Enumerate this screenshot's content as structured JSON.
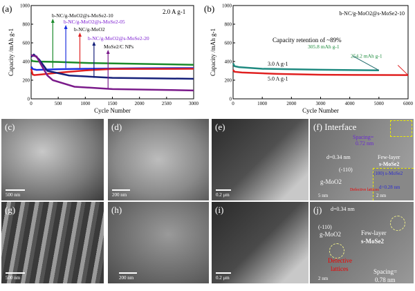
{
  "chart_data": [
    {
      "type": "line",
      "panel_label": "(a)",
      "annotation": "2.0 A g-1",
      "xlabel": "Cycle Number",
      "ylabel": "Capacity /mAh g-1",
      "xlim": [
        0,
        3000
      ],
      "ylim": [
        0,
        1000
      ],
      "xticks": [
        0,
        500,
        1000,
        1500,
        2000,
        2500,
        3000
      ],
      "yticks": [
        0,
        200,
        400,
        600,
        800,
        1000
      ],
      "series": [
        {
          "name": "b-NC/g-MoO2@s-MoSe2-10",
          "color": "#1a8a2a",
          "x": [
            0,
            20,
            100,
            500,
            1000,
            2000,
            3000
          ],
          "y": [
            420,
            405,
            400,
            395,
            385,
            375,
            365
          ],
          "arrow_x": 400
        },
        {
          "name": "b-NC/g-MoO2@s-MoSe2-05",
          "color": "#1a2fe0",
          "x": [
            0,
            30,
            100,
            500,
            1000,
            2000,
            3000
          ],
          "y": [
            345,
            320,
            310,
            318,
            322,
            328,
            330
          ],
          "arrow_x": 640
        },
        {
          "name": "b-NC/g-MoO2",
          "color": "#e02020",
          "x": [
            0,
            30,
            60,
            200,
            500,
            1000,
            1500,
            3000
          ],
          "y": [
            320,
            260,
            255,
            262,
            280,
            305,
            320,
            322
          ],
          "arrow_x": 900
        },
        {
          "name": "b-NC/g-MoO2@s-MoSe2-20",
          "color": "#15207a",
          "x": [
            0,
            50,
            150,
            300,
            700,
            1500,
            3000
          ],
          "y": [
            450,
            475,
            420,
            300,
            250,
            225,
            215
          ],
          "arrow_x": 1160
        },
        {
          "name": "MoSe2/C NPs",
          "color": "#7a1a8a",
          "x": [
            0,
            50,
            100,
            200,
            300,
            400,
            800,
            1500,
            3000
          ],
          "y": [
            470,
            460,
            455,
            350,
            250,
            200,
            130,
            105,
            90
          ],
          "arrow_x": 1420
        }
      ]
    },
    {
      "type": "line",
      "panel_label": "(b)",
      "title": "b-NC/g-MoO2@s-MoSe2-10",
      "annotation": "Capacity retention of ~89%",
      "xlabel": "Cycle Number",
      "ylabel": "Capacity /mAh g-1",
      "xlim": [
        0,
        6000
      ],
      "ylim": [
        0,
        1000
      ],
      "xticks": [
        0,
        1000,
        2000,
        3000,
        4000,
        5000,
        6000
      ],
      "yticks": [
        0,
        200,
        400,
        600,
        800,
        1000
      ],
      "series": [
        {
          "name": "3.0 A g-1",
          "color": "#1f8a80",
          "x": [
            0,
            50,
            200,
            1000,
            3000,
            5000
          ],
          "y": [
            380,
            350,
            340,
            322,
            312,
            305.8
          ],
          "end_label": "305.8 mAh g-1"
        },
        {
          "name": "5.0 A g-1",
          "color": "#e02020",
          "x": [
            0,
            50,
            300,
            1500,
            3000,
            6000
          ],
          "y": [
            310,
            290,
            282,
            268,
            258,
            254.2
          ],
          "end_label": "254.2 mAh g-1"
        }
      ]
    }
  ],
  "panels": {
    "c": {
      "label": "(c)",
      "scale": "500 nm"
    },
    "d": {
      "label": "(d)",
      "scale": "200 nm"
    },
    "e": {
      "label": "(e)",
      "scale": "0.2 μm"
    },
    "f": {
      "label": "(f) Interface",
      "spacing": "Spacing=",
      "spacing_val": "0.72 nm",
      "d": "d=0.34 nm",
      "plane": "(-110)",
      "phase": "g-MoO2",
      "fewlayer": "Few-layer",
      "smose2": "s-MoSe2",
      "inset_plane": "(100)  s-MoSe2",
      "inset_d": "d=0.28 nm",
      "defect": "Defective lattices",
      "scale": "5 nm",
      "inset_scale": "2 nm"
    },
    "g": {
      "label": "(g)",
      "scale": "500 nm"
    },
    "h": {
      "label": "(h)",
      "scale": "200 nm"
    },
    "i": {
      "label": "(i)",
      "scale": "0.2 μm"
    },
    "j": {
      "label": "(j)",
      "d": "d=0.34 nm",
      "plane": "(-110)",
      "phase": "g-MoO2",
      "fewlayer": "Few-layer",
      "smose2": "s-MoSe2",
      "defect1": "Defective",
      "defect2": "lattices",
      "spacing": "Spacing=",
      "spacing_val": "0.78 nm",
      "scale": "2 nm"
    }
  }
}
